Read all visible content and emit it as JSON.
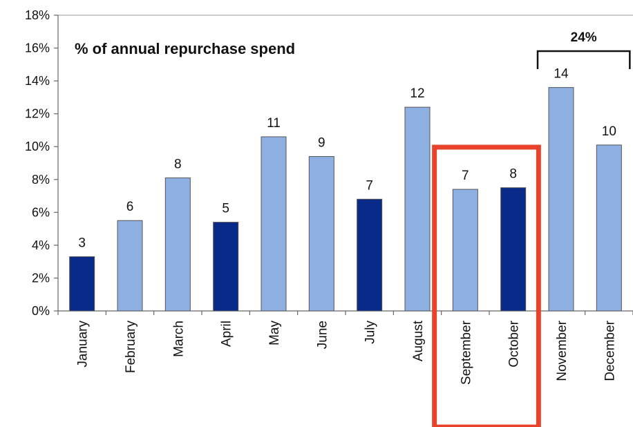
{
  "chart_data": {
    "type": "bar",
    "title": "% of annual repurchase spend",
    "xlabel": "",
    "ylabel": "",
    "ylim": [
      0,
      18
    ],
    "yticks": [
      "0%",
      "2%",
      "4%",
      "6%",
      "8%",
      "10%",
      "12%",
      "14%",
      "16%",
      "18%"
    ],
    "categories": [
      "January",
      "February",
      "March",
      "April",
      "May",
      "June",
      "July",
      "August",
      "September",
      "October",
      "November",
      "December"
    ],
    "values": [
      3.3,
      5.5,
      8.1,
      5.4,
      10.6,
      9.4,
      6.8,
      12.4,
      7.4,
      7.5,
      13.6,
      10.1
    ],
    "data_labels": [
      "3",
      "6",
      "8",
      "5",
      "11",
      "9",
      "7",
      "12",
      "7",
      "8",
      "14",
      "10"
    ],
    "highlight_months": [
      "January",
      "April",
      "July",
      "October"
    ],
    "grid": false,
    "colors": {
      "bar_light": "#8eb0e3",
      "bar_dark": "#0a2a8a",
      "bar_edge": "#555555",
      "highlight_box": "#e8412c"
    },
    "annotations": {
      "bracket_label": "24%",
      "bracket_months": [
        "November",
        "December"
      ],
      "highlight_box_months": [
        "September",
        "October"
      ]
    }
  }
}
